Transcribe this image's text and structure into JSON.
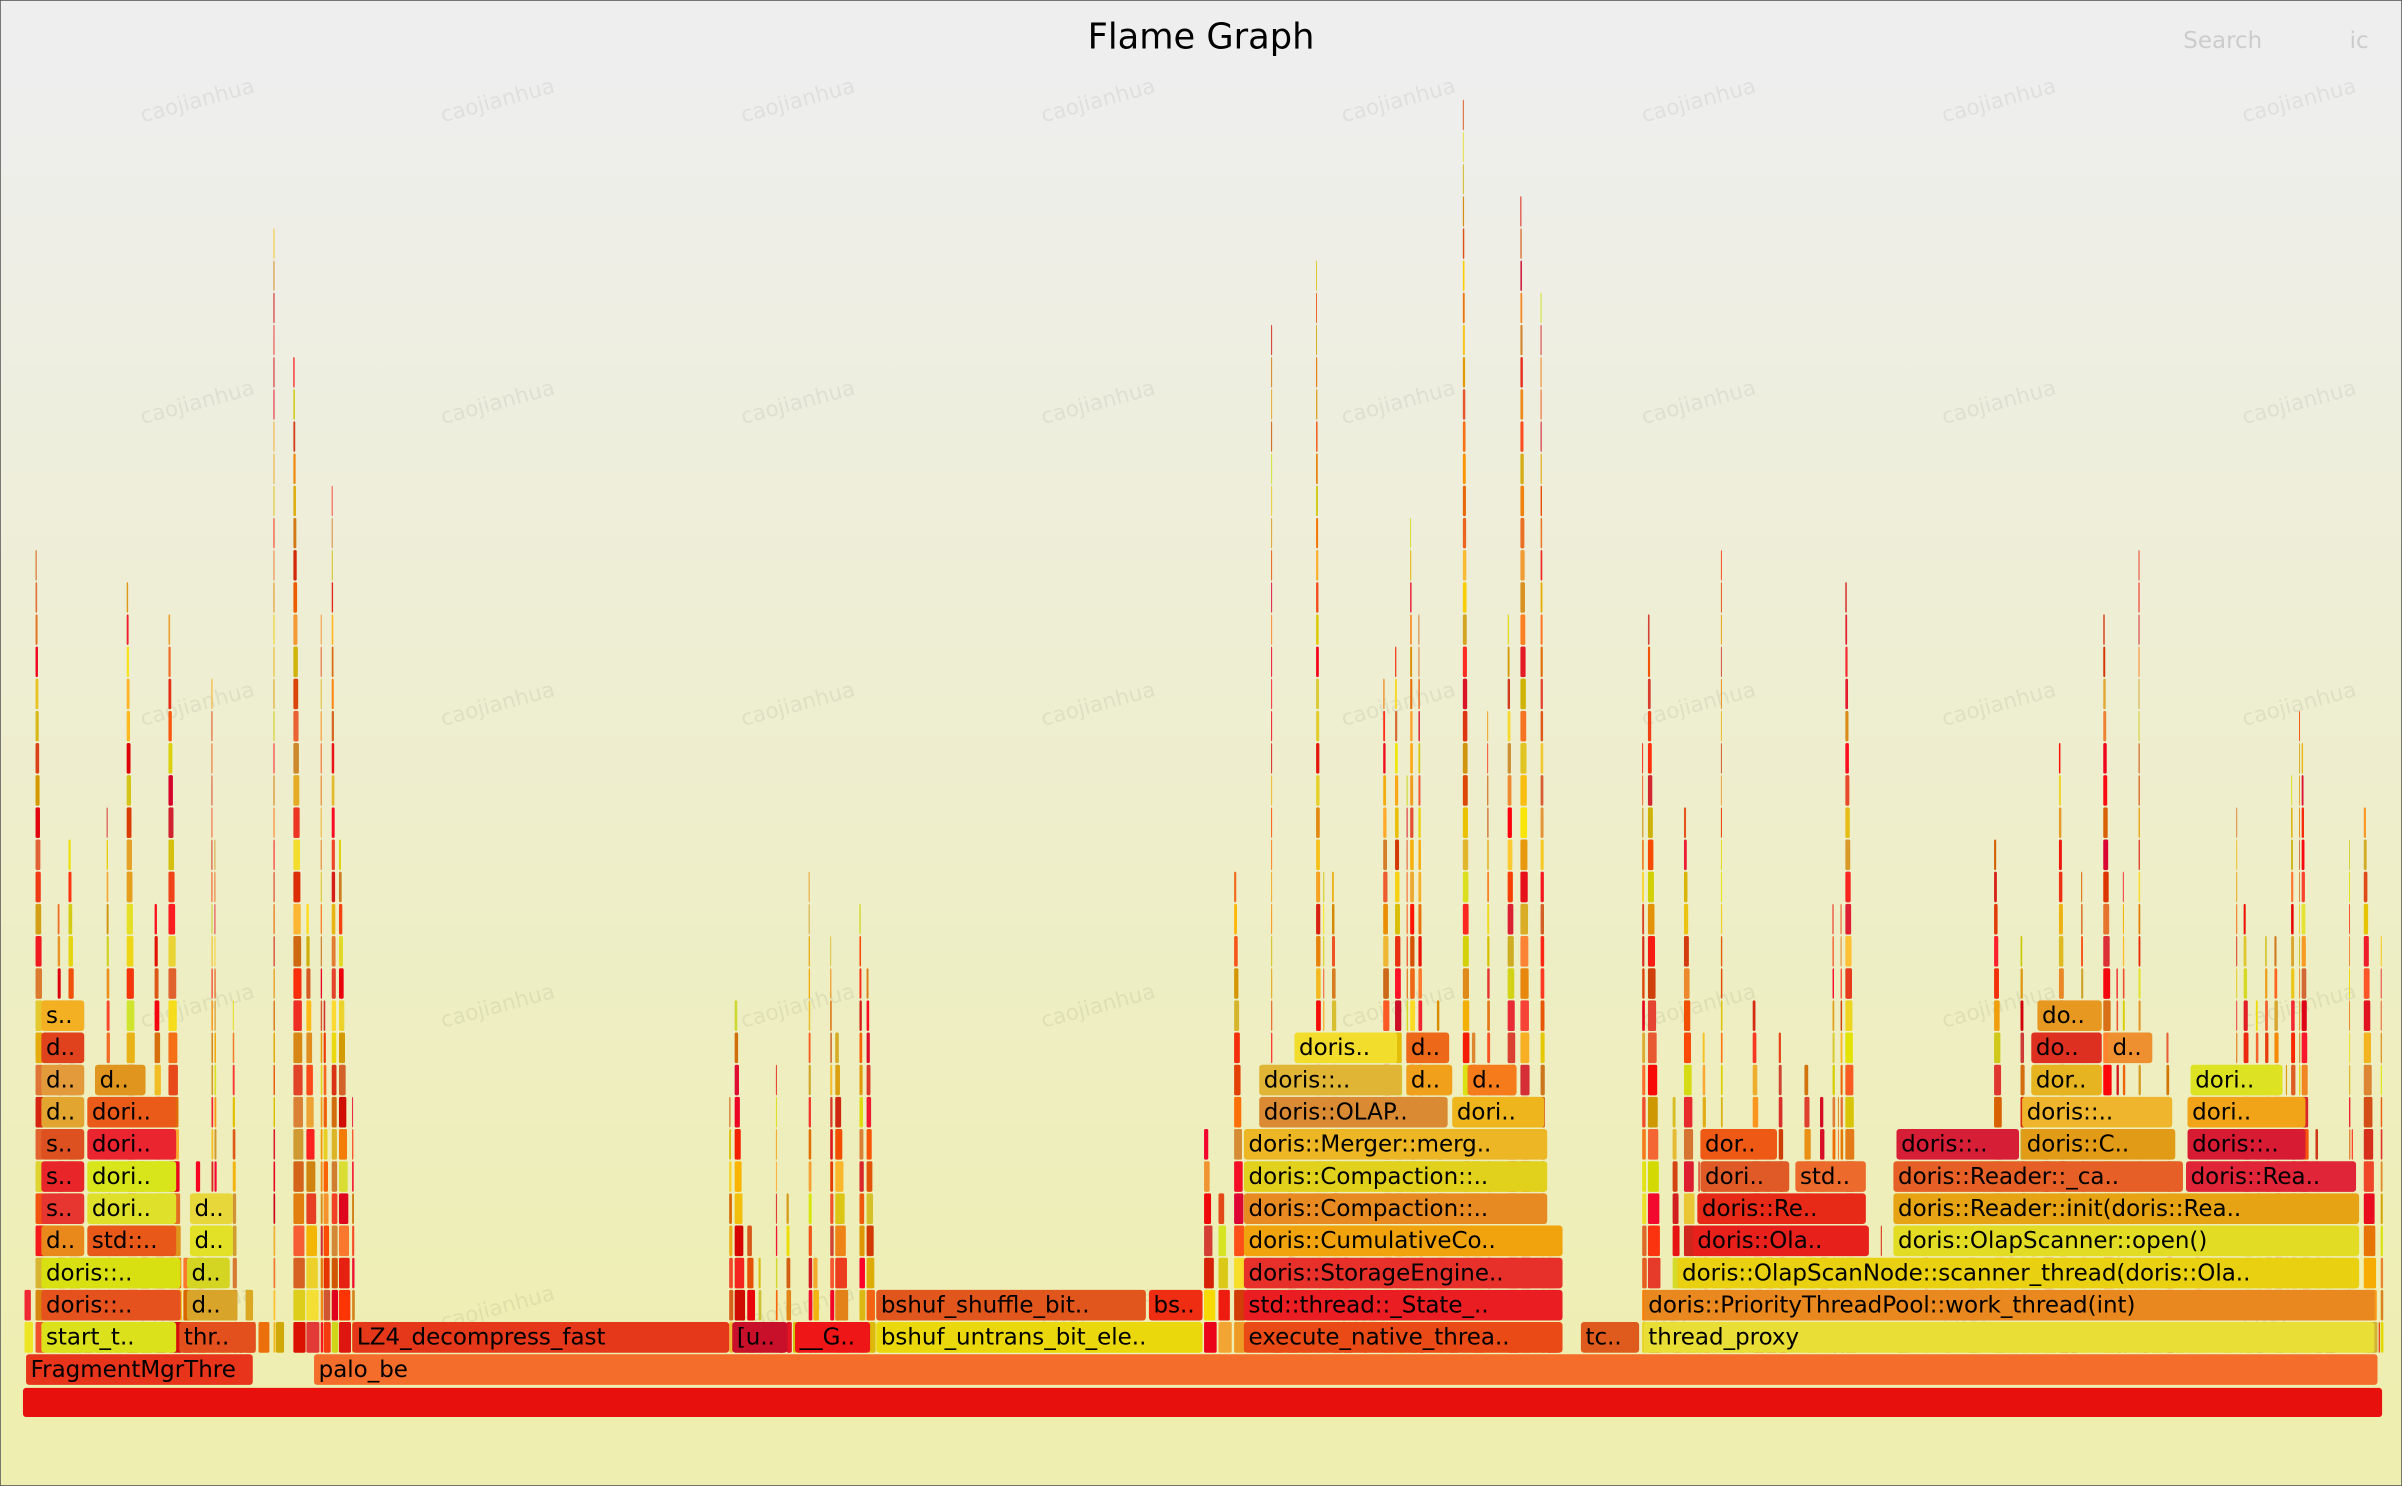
{
  "header": {
    "title": "Flame Graph",
    "search": "Search",
    "ic": "ic"
  },
  "watermark": "caojianhua",
  "frames": {
    "rows": [
      [
        "FragmentMgrThre",
        "palo_be"
      ],
      [
        "start_t..",
        "thr..",
        "LZ4_decompress_fast",
        "[u..",
        "__G..",
        "bshuf_untrans_bit_ele..",
        "execute_native_threa..",
        "tc..",
        "thread_proxy"
      ],
      [
        "doris::..",
        "d..",
        "bshuf_shuffle_bit..",
        "bs..",
        "std::thread::_State_..",
        "doris::PriorityThreadPool::work_thread(int)"
      ],
      [
        "doris::..",
        "d..",
        "doris::StorageEngine..",
        "doris::OlapScanNode::scanner_thread(doris::Ola.."
      ],
      [
        "d..",
        "std::..",
        "d..",
        "doris::CumulativeCo..",
        "doris::Ola..",
        "doris::OlapScanner::open()"
      ],
      [
        "s..",
        "dori..",
        "d..",
        "doris::Compaction::..",
        "doris::Re..",
        "doris::Reader::init(doris::Rea.."
      ],
      [
        "s..",
        "dori..",
        "doris::Compaction::..",
        "dori..",
        "std..",
        "doris::Reader::_ca..",
        "doris::Rea.."
      ],
      [
        "s..",
        "dori..",
        "doris::Merger::merg..",
        "dor..",
        "doris::..",
        "doris::C..",
        "doris::.."
      ],
      [
        "d..",
        "dori..",
        "doris::OLAP..",
        "dori..",
        "doris::..",
        "dori.."
      ],
      [
        "d..",
        "d..",
        "doris::..",
        "d..",
        "d..",
        "dor..",
        "dori.."
      ],
      [
        "d..",
        "doris..",
        "d..",
        "do..",
        "d.."
      ],
      [
        "s..",
        "do.."
      ]
    ]
  }
}
